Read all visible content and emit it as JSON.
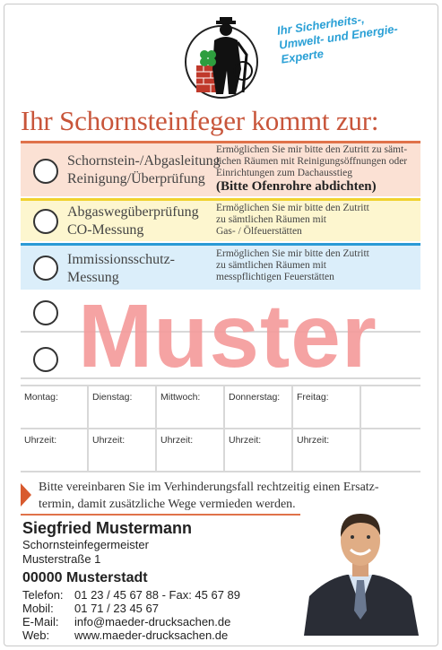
{
  "tagline": [
    "Ihr Sicherheits-,",
    "Umwelt- und Energie-",
    "Experte"
  ],
  "heading": "Ihr Schornsteinfeger kommt zur:",
  "services": [
    {
      "title_lines": [
        "Schornstein-/Abgasleitung",
        "Reinigung/Überprüfung"
      ],
      "desc_lines": [
        "Ermöglichen Sie mir bitte den Zutritt zu sämt-",
        "lichen Räumen mit Reinigungsöffnungen oder",
        "Einrichtungen zum Dachausstieg"
      ],
      "desc_bold": "(Bitte Ofenrohre abdichten)",
      "color": "#e0724a"
    },
    {
      "title_lines": [
        "Abgaswegüberprüfung",
        "CO-Messung"
      ],
      "desc_lines": [
        "Ermöglichen Sie mir bitte den Zutritt",
        "zu sämtlichen Räumen mit",
        "Gas- / Ölfeuerstätten"
      ],
      "color": "#f0d22e"
    },
    {
      "title_lines": [
        "Immissionsschutz-",
        "Messung"
      ],
      "desc_lines": [
        "Ermöglichen Sie mir bitte den Zutritt",
        "zu sämtlichen Räumen mit",
        "messpflichtigen Feuerstätten"
      ],
      "color": "#2a9ad6"
    }
  ],
  "watermark": "Muster",
  "days": [
    "Montag:",
    "Dienstag:",
    "Mittwoch:",
    "Donnerstag:",
    "Freitag:",
    ""
  ],
  "time_label": "Uhrzeit:",
  "notice_lines": [
    "Bitte vereinbaren Sie im Verhinderungsfall rechtzeitig einen Ersatz-",
    "termin, damit zusätzliche Wege vermieden werden."
  ],
  "contact": {
    "name": "Siegfried Mustermann",
    "role": "Schornsteinfegermeister",
    "street": "Musterstraße 1",
    "city": "00000 Musterstadt",
    "rows": [
      {
        "label": "Telefon:",
        "value": "01 23 / 45 67 88 - Fax:  45 67 89"
      },
      {
        "label": "Mobil:",
        "value": "01 71 / 23 45 67"
      },
      {
        "label": "E-Mail:",
        "value": "info@maeder-drucksachen.de"
      },
      {
        "label": "Web:",
        "value": "www.maeder-drucksachen.de"
      }
    ]
  },
  "icons": {
    "logo": "chimney-sweep-logo-icon",
    "photo": "person-photo"
  }
}
